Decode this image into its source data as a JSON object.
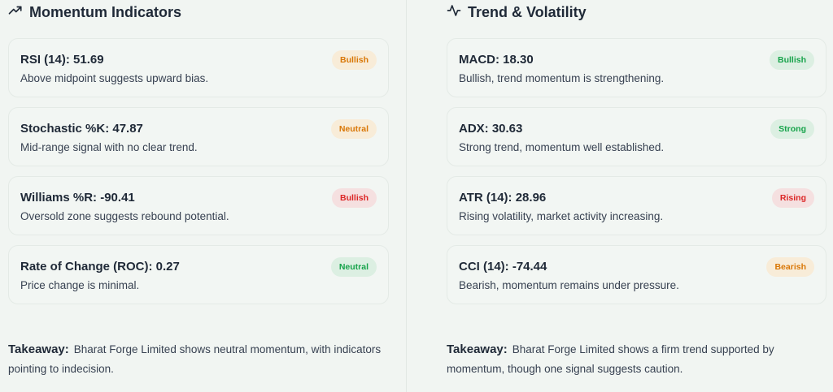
{
  "momentum": {
    "title": "Momentum Indicators",
    "icon": "trending-up-icon",
    "cards": [
      {
        "title": "RSI (14): 51.69",
        "desc": "Above midpoint suggests upward bias.",
        "badge": "Bullish",
        "badge_color": "#d97706"
      },
      {
        "title": "Stochastic %K: 47.87",
        "desc": "Mid-range signal with no clear trend.",
        "badge": "Neutral",
        "badge_color": "#d97706"
      },
      {
        "title": "Williams %R: -90.41",
        "desc": "Oversold zone suggests rebound potential.",
        "badge": "Bullish",
        "badge_color": "#dc2626"
      },
      {
        "title": "Rate of Change (ROC): 0.27",
        "desc": "Price change is minimal.",
        "badge": "Neutral",
        "badge_color": "#16a34a"
      }
    ],
    "takeaway_label": "Takeaway:",
    "takeaway_text": "Bharat Forge Limited shows neutral momentum, with indicators pointing to indecision."
  },
  "trend": {
    "title": "Trend & Volatility",
    "icon": "activity-icon",
    "cards": [
      {
        "title": "MACD: 18.30",
        "desc": "Bullish, trend momentum is strengthening.",
        "badge": "Bullish",
        "badge_color": "#16a34a"
      },
      {
        "title": "ADX: 30.63",
        "desc": "Strong trend, momentum well established.",
        "badge": "Strong",
        "badge_color": "#16a34a"
      },
      {
        "title": "ATR (14): 28.96",
        "desc": "Rising volatility, market activity increasing.",
        "badge": "Rising",
        "badge_color": "#dc2626"
      },
      {
        "title": "CCI (14): -74.44",
        "desc": "Bearish, momentum remains under pressure.",
        "badge": "Bearish",
        "badge_color": "#d97706"
      }
    ],
    "takeaway_label": "Takeaway:",
    "takeaway_text": "Bharat Forge Limited shows a firm trend supported by momentum, though one signal suggests caution."
  }
}
